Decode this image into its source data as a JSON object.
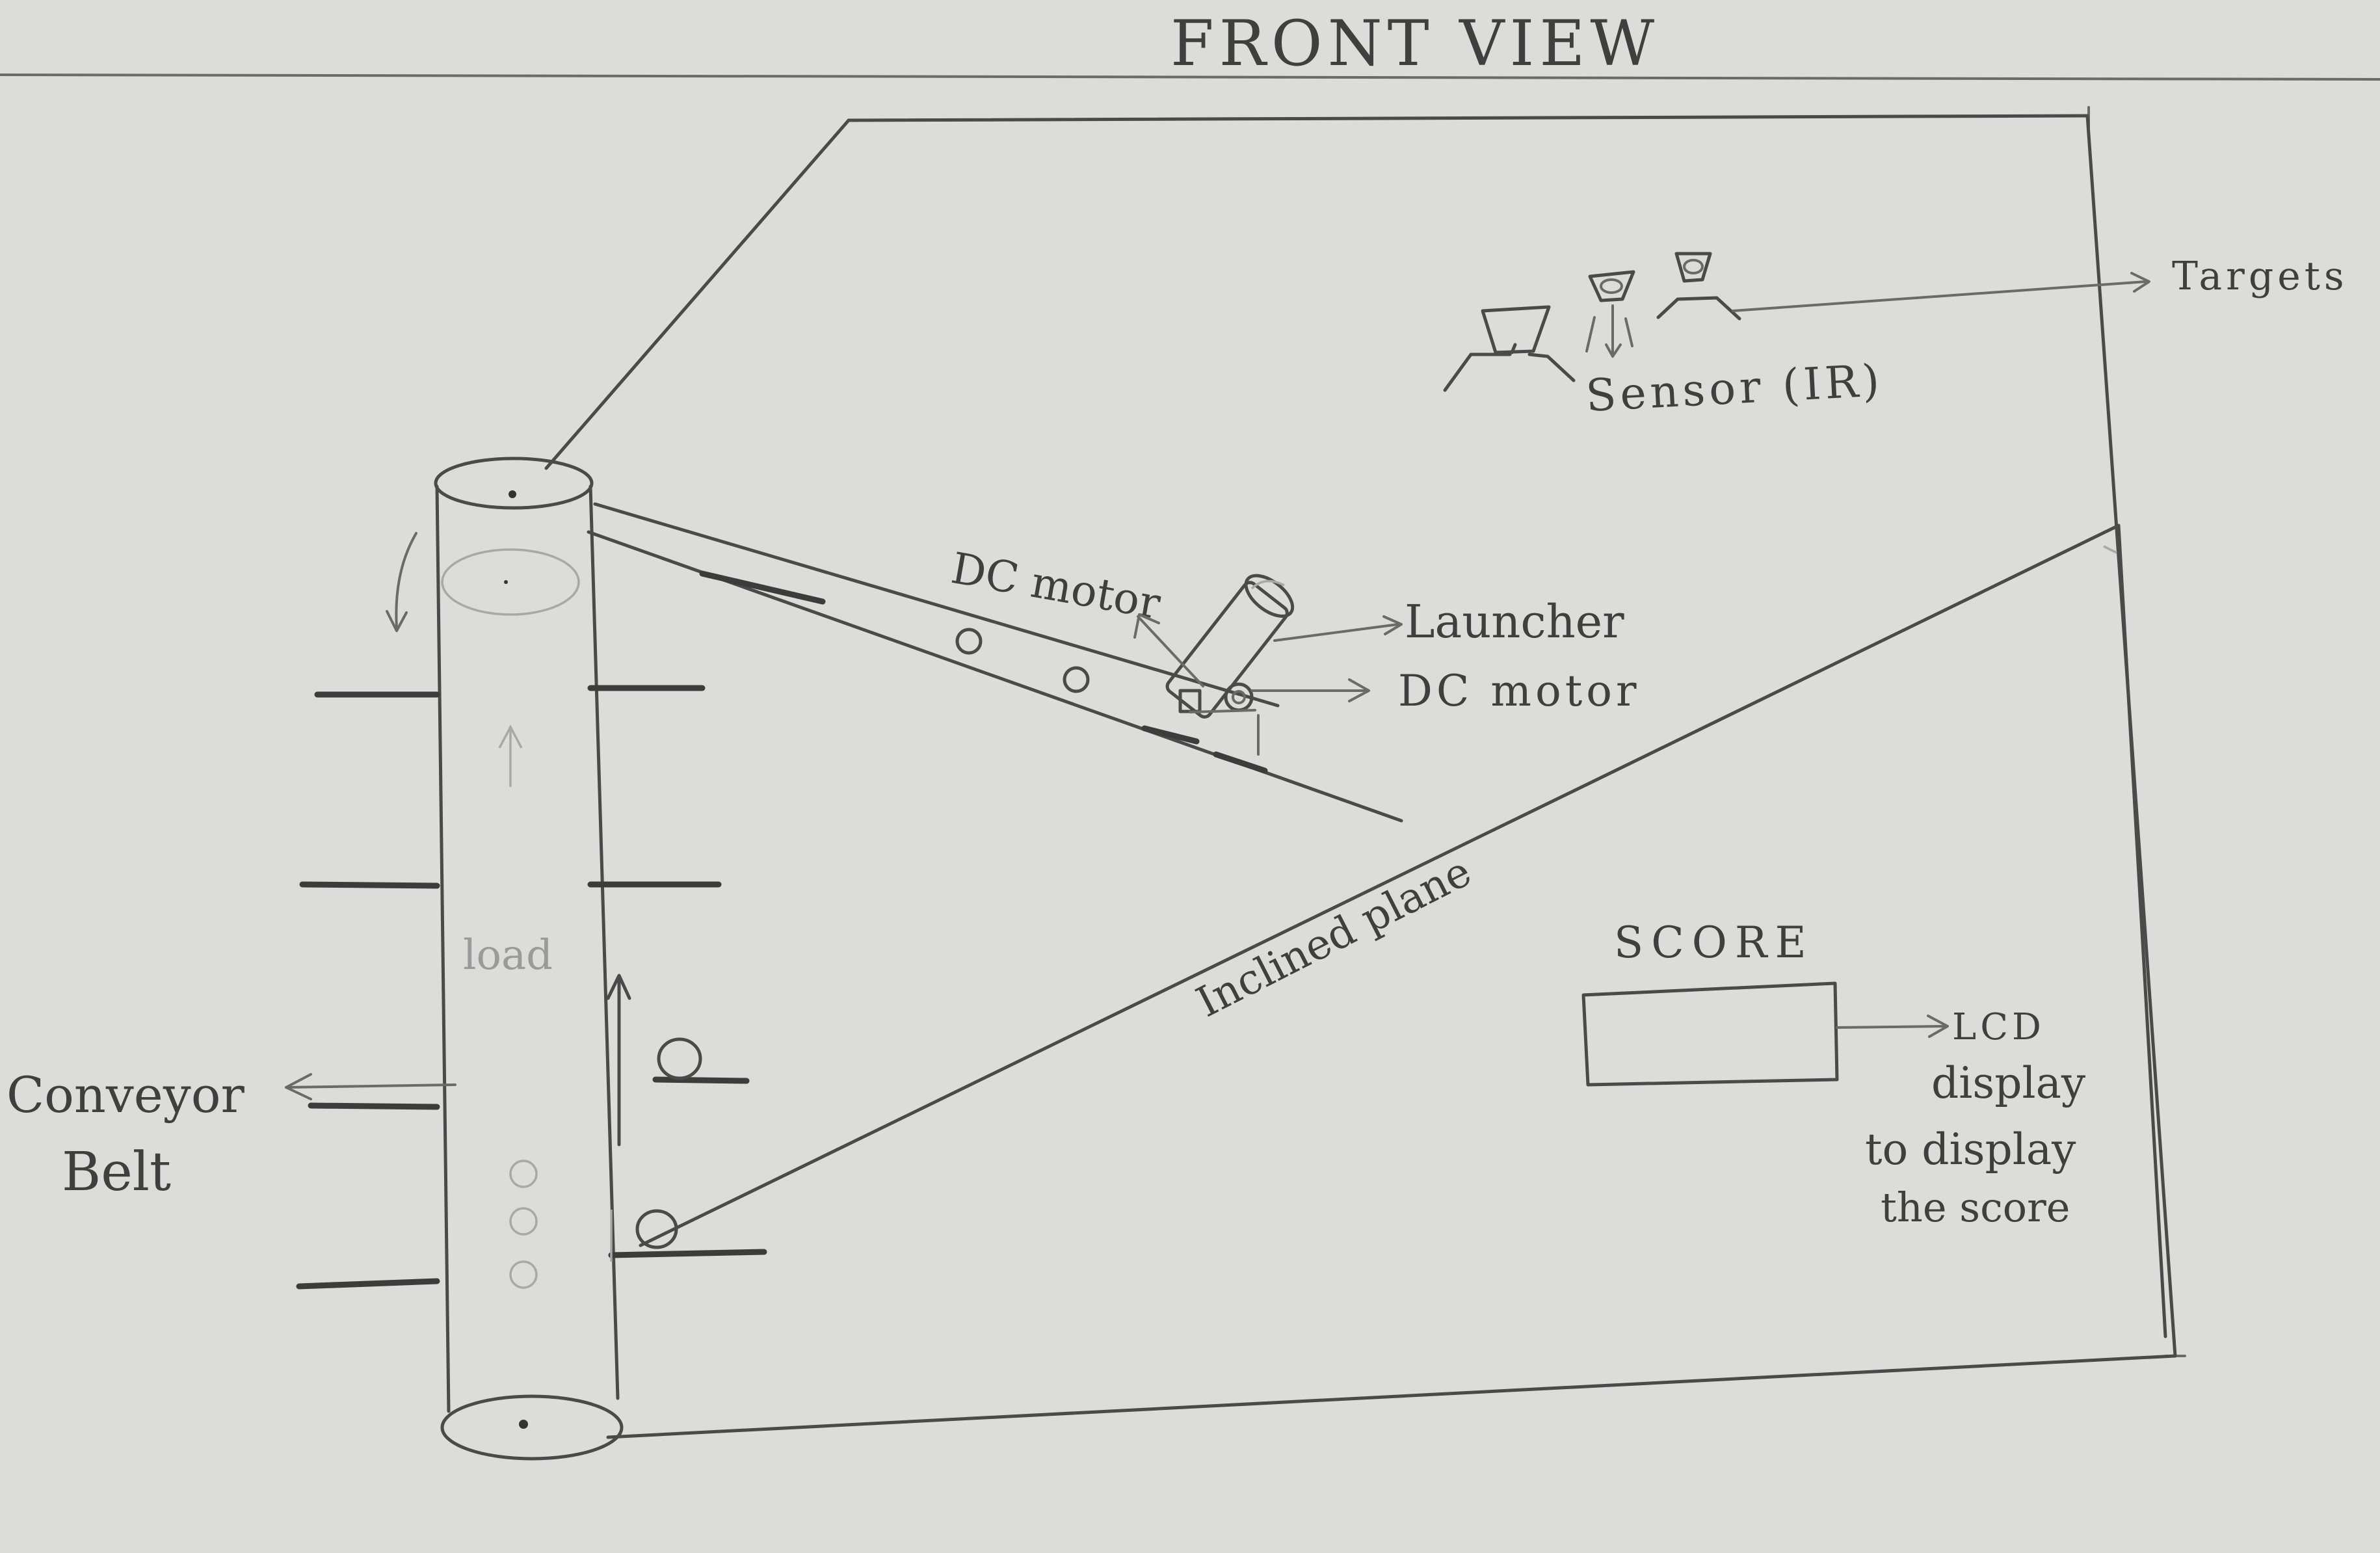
{
  "title": "FRONT VIEW",
  "labels": {
    "targets": "Targets",
    "sensor": "Sensor (IR)",
    "dc_motor_top": "DC motor",
    "launcher": "Launcher",
    "dc_motor_right": "DC motor",
    "inclined_plane": "Inclined plane",
    "score": "SCORE",
    "lcd_display_line1": "LCD",
    "lcd_display_line2": "display",
    "lcd_display_line3": "to display",
    "lcd_display_line4": "the score",
    "conveyor_line1": "Conveyor",
    "conveyor_line2": "Belt",
    "load": "load"
  },
  "colors": {
    "paper": "#dcdcda",
    "pencil": "#4a4a4a"
  }
}
